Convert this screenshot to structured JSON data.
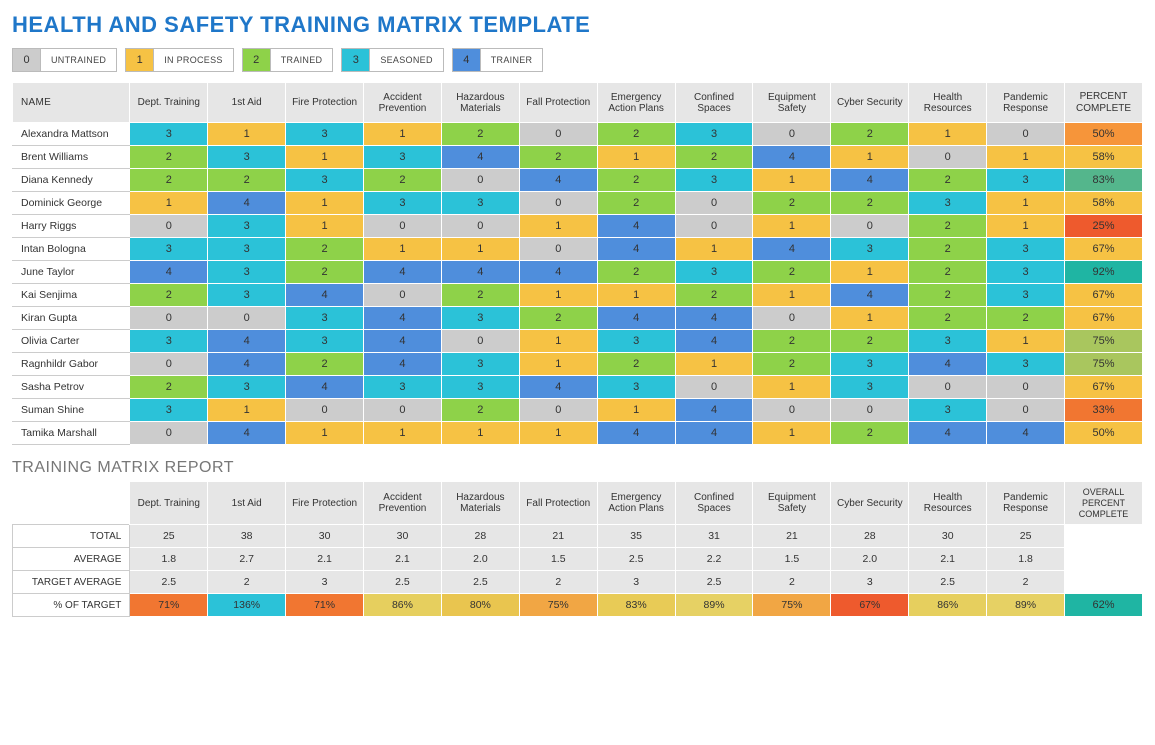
{
  "title": "HEALTH AND SAFETY TRAINING MATRIX TEMPLATE",
  "legend": [
    {
      "num": "0",
      "label": "UNTRAINED",
      "color": "#cccccc"
    },
    {
      "num": "1",
      "label": "IN PROCESS",
      "color": "#f6c244"
    },
    {
      "num": "2",
      "label": "TRAINED",
      "color": "#8ed249"
    },
    {
      "num": "3",
      "label": "SEASONED",
      "color": "#2bc2d8"
    },
    {
      "num": "4",
      "label": "TRAINER",
      "color": "#4f8edc"
    }
  ],
  "score_colors": {
    "0": "#cccccc",
    "1": "#f6c244",
    "2": "#8ed249",
    "3": "#2bc2d8",
    "4": "#4f8edc"
  },
  "columns": [
    "Dept. Training",
    "1st Aid",
    "Fire Protection",
    "Accident Prevention",
    "Hazardous Materials",
    "Fall Protection",
    "Emergency Action Plans",
    "Confined Spaces",
    "Equipment Safety",
    "Cyber Security",
    "Health Resources",
    "Pandemic Response"
  ],
  "name_header": "NAME",
  "pct_header": "PERCENT COMPLETE",
  "people": [
    {
      "name": "Alexandra Mattson",
      "vals": [
        3,
        1,
        3,
        1,
        2,
        0,
        2,
        3,
        0,
        2,
        1,
        0
      ],
      "pct": "50%",
      "pct_color": "#f6953a"
    },
    {
      "name": "Brent Williams",
      "vals": [
        2,
        3,
        1,
        3,
        4,
        2,
        1,
        2,
        4,
        1,
        0,
        1
      ],
      "pct": "58%",
      "pct_color": "#f6c244"
    },
    {
      "name": "Diana Kennedy",
      "vals": [
        2,
        2,
        3,
        2,
        0,
        4,
        2,
        3,
        1,
        4,
        2,
        3
      ],
      "pct": "83%",
      "pct_color": "#54b68c"
    },
    {
      "name": "Dominick George",
      "vals": [
        1,
        4,
        1,
        3,
        3,
        0,
        2,
        0,
        2,
        2,
        3,
        1
      ],
      "pct": "58%",
      "pct_color": "#f6c244"
    },
    {
      "name": "Harry Riggs",
      "vals": [
        0,
        3,
        1,
        0,
        0,
        1,
        4,
        0,
        1,
        0,
        2,
        1
      ],
      "pct": "25%",
      "pct_color": "#ee5a2d"
    },
    {
      "name": "Intan Bologna",
      "vals": [
        3,
        3,
        2,
        1,
        1,
        0,
        4,
        1,
        4,
        3,
        2,
        3
      ],
      "pct": "67%",
      "pct_color": "#f6c244"
    },
    {
      "name": "June Taylor",
      "vals": [
        4,
        3,
        2,
        4,
        4,
        4,
        2,
        3,
        2,
        1,
        2,
        3
      ],
      "pct": "92%",
      "pct_color": "#1fb5a3"
    },
    {
      "name": "Kai Senjima",
      "vals": [
        2,
        3,
        4,
        0,
        2,
        1,
        1,
        2,
        1,
        4,
        2,
        3
      ],
      "pct": "67%",
      "pct_color": "#f6c244"
    },
    {
      "name": "Kiran Gupta",
      "vals": [
        0,
        0,
        3,
        4,
        3,
        2,
        4,
        4,
        0,
        1,
        2,
        2
      ],
      "pct": "67%",
      "pct_color": "#f6c244"
    },
    {
      "name": "Olivia Carter",
      "vals": [
        3,
        4,
        3,
        4,
        0,
        1,
        3,
        4,
        2,
        2,
        3,
        1
      ],
      "pct": "75%",
      "pct_color": "#a9c65e"
    },
    {
      "name": "Ragnhildr Gabor",
      "vals": [
        0,
        4,
        2,
        4,
        3,
        1,
        2,
        1,
        2,
        3,
        4,
        3
      ],
      "pct": "75%",
      "pct_color": "#a9c65e"
    },
    {
      "name": "Sasha Petrov",
      "vals": [
        2,
        3,
        4,
        3,
        3,
        4,
        3,
        0,
        1,
        3,
        0,
        0
      ],
      "pct": "67%",
      "pct_color": "#f6c244"
    },
    {
      "name": "Suman Shine",
      "vals": [
        3,
        1,
        0,
        0,
        2,
        0,
        1,
        4,
        0,
        0,
        3,
        0
      ],
      "pct": "33%",
      "pct_color": "#f17631"
    },
    {
      "name": "Tamika Marshall",
      "vals": [
        0,
        4,
        1,
        1,
        1,
        1,
        4,
        4,
        1,
        2,
        4,
        4
      ],
      "pct": "50%",
      "pct_color": "#f6c244"
    }
  ],
  "report_title": "TRAINING MATRIX REPORT",
  "report": {
    "overall_label": "OVERALL PERCENT COMPLETE",
    "rows": [
      {
        "label": "TOTAL",
        "vals": [
          "25",
          "38",
          "30",
          "30",
          "28",
          "21",
          "35",
          "31",
          "21",
          "28",
          "30",
          "25"
        ]
      },
      {
        "label": "AVERAGE",
        "vals": [
          "1.8",
          "2.7",
          "2.1",
          "2.1",
          "2.0",
          "1.5",
          "2.5",
          "2.2",
          "1.5",
          "2.0",
          "2.1",
          "1.8"
        ]
      },
      {
        "label": "TARGET AVERAGE",
        "vals": [
          "2.5",
          "2",
          "3",
          "2.5",
          "2.5",
          "2",
          "3",
          "2.5",
          "2",
          "3",
          "2.5",
          "2"
        ]
      }
    ],
    "pct_of_target": {
      "label": "% OF TARGET",
      "cells": [
        {
          "v": "71%",
          "c": "#f17631"
        },
        {
          "v": "136%",
          "c": "#2bc2d8"
        },
        {
          "v": "71%",
          "c": "#f17631"
        },
        {
          "v": "86%",
          "c": "#e6cf5e"
        },
        {
          "v": "80%",
          "c": "#e9c54f"
        },
        {
          "v": "75%",
          "c": "#f1a644"
        },
        {
          "v": "83%",
          "c": "#e8cb56"
        },
        {
          "v": "89%",
          "c": "#e6d164"
        },
        {
          "v": "75%",
          "c": "#f1a644"
        },
        {
          "v": "67%",
          "c": "#ee5a2d"
        },
        {
          "v": "86%",
          "c": "#e6cf5e"
        },
        {
          "v": "89%",
          "c": "#e6d164"
        }
      ]
    },
    "overall_value": "62%",
    "overall_color": "#1fb5a3"
  }
}
